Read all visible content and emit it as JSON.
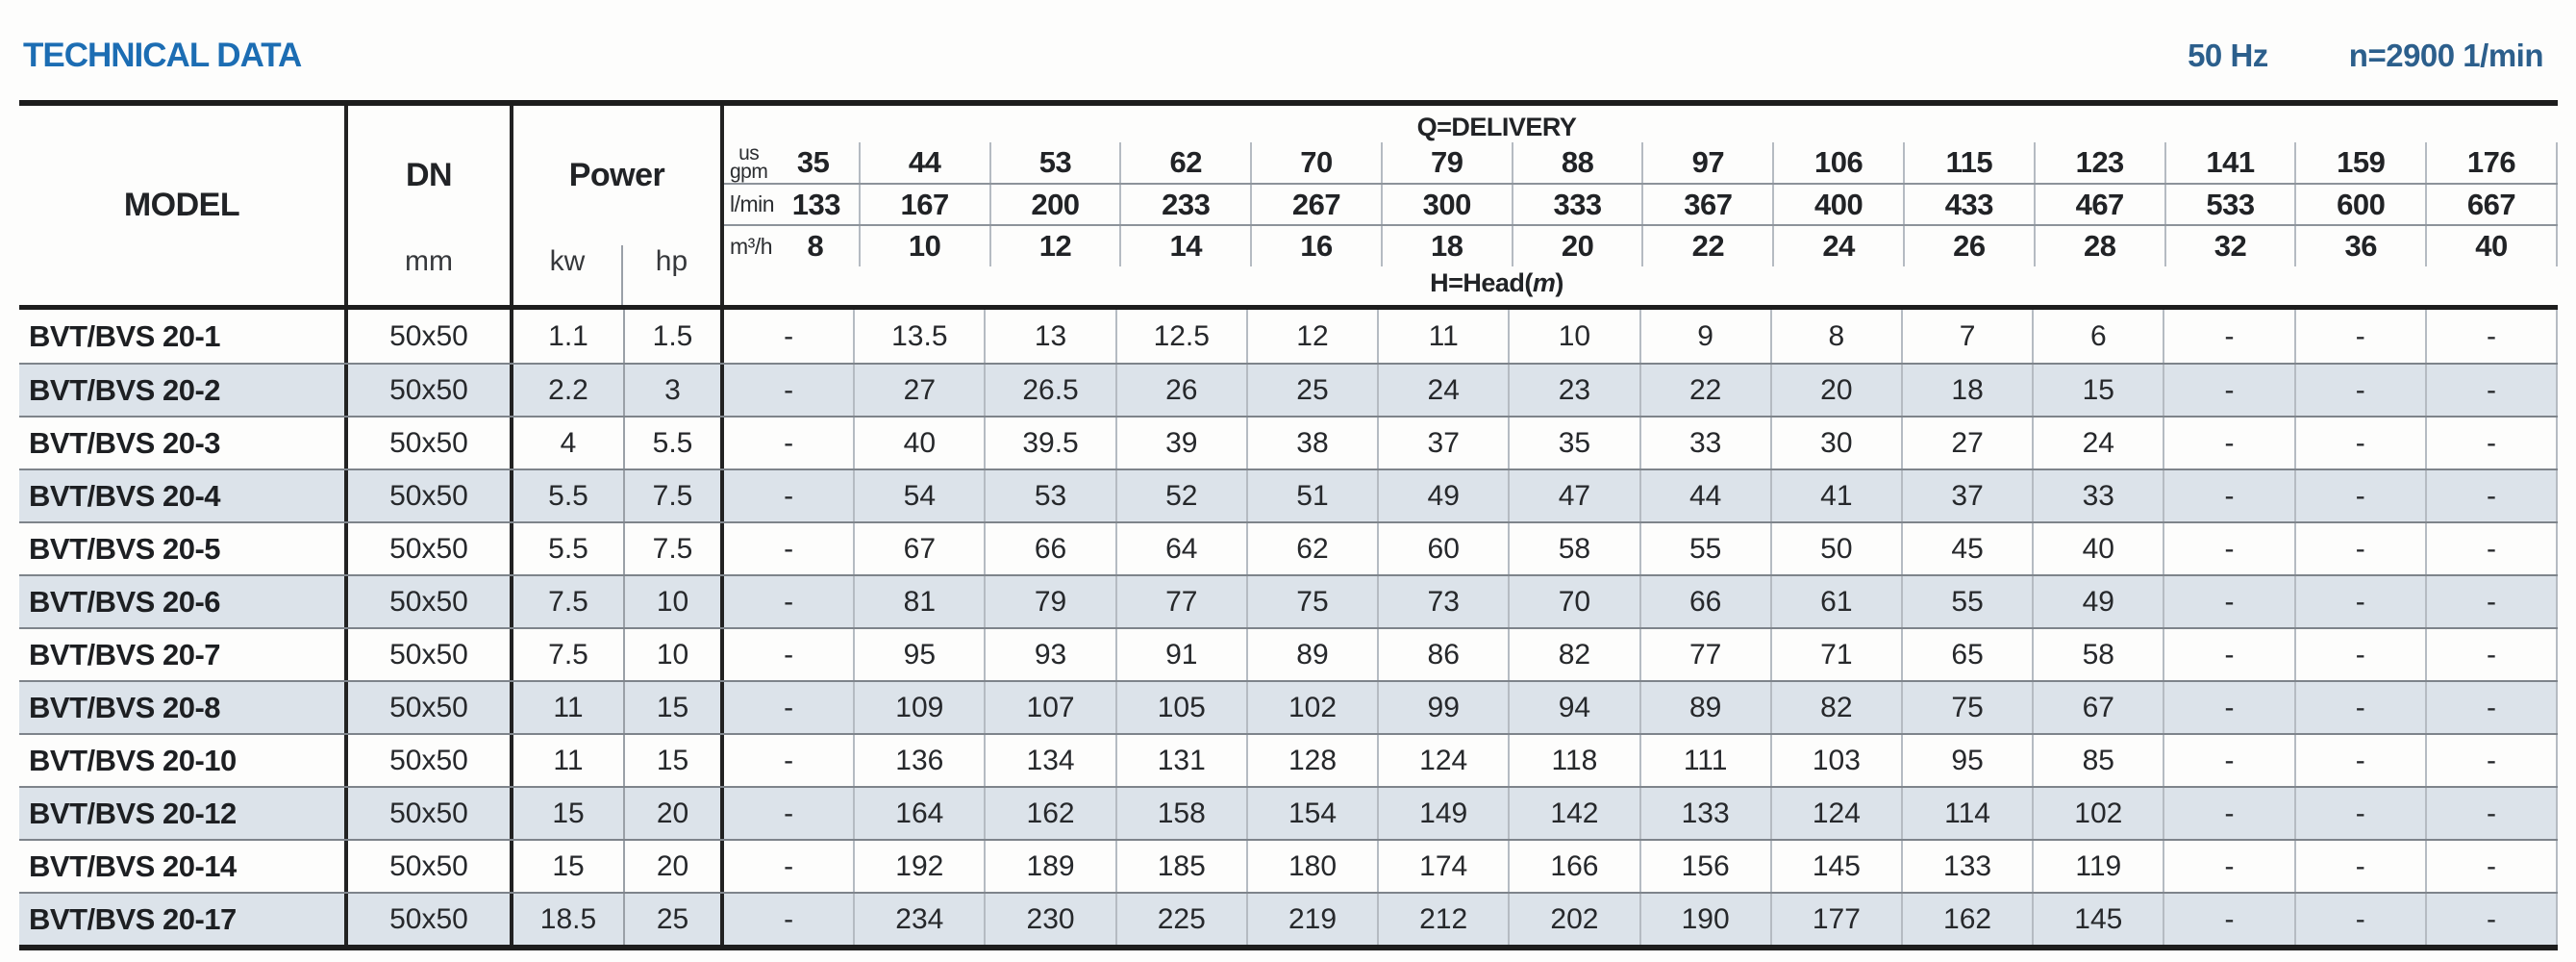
{
  "header": {
    "title": "TECHNICAL DATA",
    "frequency": "50 Hz",
    "speed": "n=2900 1/min"
  },
  "colors": {
    "title_blue": "#1c6db3",
    "subtitle_blue": "#2c5f8c",
    "row_shade": "#dce3ea"
  },
  "table": {
    "model_header": "MODEL",
    "dn_header": "DN",
    "dn_unit": "mm",
    "power_header": "Power",
    "power_unit_kw": "kw",
    "power_unit_hp": "hp",
    "delivery_header": {
      "title": "Q=DELIVERY",
      "unit_rows": [
        {
          "unit": [
            "us",
            "gpm"
          ],
          "values": [
            "35",
            "44",
            "53",
            "62",
            "70",
            "79",
            "88",
            "97",
            "106",
            "115",
            "123",
            "141",
            "159",
            "176"
          ]
        },
        {
          "unit": [
            "l/min"
          ],
          "values": [
            "133",
            "167",
            "200",
            "233",
            "267",
            "300",
            "333",
            "367",
            "400",
            "433",
            "467",
            "533",
            "600",
            "667"
          ]
        },
        {
          "unit": [
            "m³/h"
          ],
          "values": [
            "8",
            "10",
            "12",
            "14",
            "16",
            "18",
            "20",
            "22",
            "24",
            "26",
            "28",
            "32",
            "36",
            "40"
          ]
        }
      ],
      "head_label_prefix": "H=Head(",
      "head_label_unit": "m",
      "head_label_suffix": ")"
    },
    "rows": [
      {
        "model": "BVT/BVS 20-1",
        "dn": "50x50",
        "kw": "1.1",
        "hp": "1.5",
        "values": [
          "-",
          "13.5",
          "13",
          "12.5",
          "12",
          "11",
          "10",
          "9",
          "8",
          "7",
          "6",
          "-",
          "-",
          "-"
        ]
      },
      {
        "model": "BVT/BVS 20-2",
        "dn": "50x50",
        "kw": "2.2",
        "hp": "3",
        "values": [
          "-",
          "27",
          "26.5",
          "26",
          "25",
          "24",
          "23",
          "22",
          "20",
          "18",
          "15",
          "-",
          "-",
          "-"
        ]
      },
      {
        "model": "BVT/BVS 20-3",
        "dn": "50x50",
        "kw": "4",
        "hp": "5.5",
        "values": [
          "-",
          "40",
          "39.5",
          "39",
          "38",
          "37",
          "35",
          "33",
          "30",
          "27",
          "24",
          "-",
          "-",
          "-"
        ]
      },
      {
        "model": "BVT/BVS 20-4",
        "dn": "50x50",
        "kw": "5.5",
        "hp": "7.5",
        "values": [
          "-",
          "54",
          "53",
          "52",
          "51",
          "49",
          "47",
          "44",
          "41",
          "37",
          "33",
          "-",
          "-",
          "-"
        ]
      },
      {
        "model": "BVT/BVS 20-5",
        "dn": "50x50",
        "kw": "5.5",
        "hp": "7.5",
        "values": [
          "-",
          "67",
          "66",
          "64",
          "62",
          "60",
          "58",
          "55",
          "50",
          "45",
          "40",
          "-",
          "-",
          "-"
        ]
      },
      {
        "model": "BVT/BVS 20-6",
        "dn": "50x50",
        "kw": "7.5",
        "hp": "10",
        "values": [
          "-",
          "81",
          "79",
          "77",
          "75",
          "73",
          "70",
          "66",
          "61",
          "55",
          "49",
          "-",
          "-",
          "-"
        ]
      },
      {
        "model": "BVT/BVS 20-7",
        "dn": "50x50",
        "kw": "7.5",
        "hp": "10",
        "values": [
          "-",
          "95",
          "93",
          "91",
          "89",
          "86",
          "82",
          "77",
          "71",
          "65",
          "58",
          "-",
          "-",
          "-"
        ]
      },
      {
        "model": "BVT/BVS 20-8",
        "dn": "50x50",
        "kw": "11",
        "hp": "15",
        "values": [
          "-",
          "109",
          "107",
          "105",
          "102",
          "99",
          "94",
          "89",
          "82",
          "75",
          "67",
          "-",
          "-",
          "-"
        ]
      },
      {
        "model": "BVT/BVS 20-10",
        "dn": "50x50",
        "kw": "11",
        "hp": "15",
        "values": [
          "-",
          "136",
          "134",
          "131",
          "128",
          "124",
          "118",
          "111",
          "103",
          "95",
          "85",
          "-",
          "-",
          "-"
        ]
      },
      {
        "model": "BVT/BVS 20-12",
        "dn": "50x50",
        "kw": "15",
        "hp": "20",
        "values": [
          "-",
          "164",
          "162",
          "158",
          "154",
          "149",
          "142",
          "133",
          "124",
          "114",
          "102",
          "-",
          "-",
          "-"
        ]
      },
      {
        "model": "BVT/BVS 20-14",
        "dn": "50x50",
        "kw": "15",
        "hp": "20",
        "values": [
          "-",
          "192",
          "189",
          "185",
          "180",
          "174",
          "166",
          "156",
          "145",
          "133",
          "119",
          "-",
          "-",
          "-"
        ]
      },
      {
        "model": "BVT/BVS 20-17",
        "dn": "50x50",
        "kw": "18.5",
        "hp": "25",
        "values": [
          "-",
          "234",
          "230",
          "225",
          "219",
          "212",
          "202",
          "190",
          "177",
          "162",
          "145",
          "-",
          "-",
          "-"
        ]
      }
    ]
  }
}
